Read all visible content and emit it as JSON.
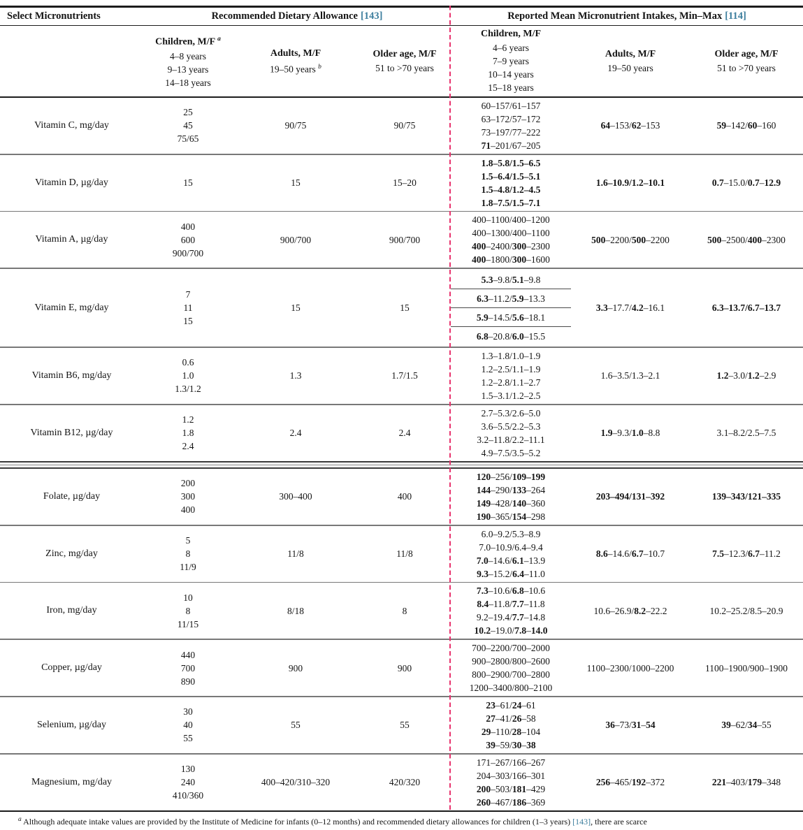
{
  "colors": {
    "reference": "#3e7f9e",
    "dashed_divider": "#e8336e"
  },
  "table": {
    "header": {
      "select_micronutrients": "Select Micronutrients",
      "rda_group": {
        "title": "Recommended Dietary Allowance",
        "ref": "[143]"
      },
      "reported_group": {
        "title": "Reported Mean Micronutrient Intakes, Min–Max",
        "ref": "[114]"
      },
      "rda_children": {
        "title": "Children, M/F",
        "sup": "a",
        "lines": [
          "4–8 years",
          "9–13 years",
          "14–18 years"
        ]
      },
      "rda_adults": {
        "title": "Adults, M/F",
        "line": "19–50 years",
        "sup": "b"
      },
      "rda_older": {
        "title": "Older age, M/F",
        "line": "51 to >70 years"
      },
      "rep_children": {
        "title": "Children, M/F",
        "lines": [
          "4–6 years",
          "7–9 years",
          "10–14 years",
          "15–18 years"
        ]
      },
      "rep_adults": {
        "title": "Adults, M/F",
        "line": "19–50 years"
      },
      "rep_older": {
        "title": "Older age, M/F",
        "line": "51 to >70 years"
      }
    },
    "rows": [
      {
        "name": "Vitamin C, mg/day",
        "divider_after": "single",
        "ruled_children": false,
        "rda_children": [
          "25",
          "45",
          "75/65"
        ],
        "rda_adults": [
          "90/75"
        ],
        "rda_older": [
          "90/75"
        ],
        "rep_children": [
          "60–157/61–157",
          "63–172/57–172",
          "73–197/77–222",
          "**71**–201/67–205"
        ],
        "rep_adults": [
          "**64**–153/**62**–153"
        ],
        "rep_older": [
          "**59**–142/**60**–160"
        ]
      },
      {
        "name": "Vitamin D, µg/day",
        "divider_after": "single",
        "ruled_children": false,
        "rda_children": [
          "15"
        ],
        "rda_adults": [
          "15"
        ],
        "rda_older": [
          "15–20"
        ],
        "rep_children": [
          "**1.8–5.8/1.5–6.5**",
          "**1.5–6.4/1.5–5.1**",
          "**1.5–4.8/1.2–4.5**",
          "**1.8–7.5/1.5–7.1**"
        ],
        "rep_adults": [
          "**1.6–10.9/1.2–10.1**"
        ],
        "rep_older": [
          "**0.7**–15.0/**0.7**–**12.9**"
        ]
      },
      {
        "name": "Vitamin A, µg/day",
        "divider_after": "single",
        "ruled_children": false,
        "rda_children": [
          "400",
          "600",
          "900/700"
        ],
        "rda_adults": [
          "900/700"
        ],
        "rda_older": [
          "900/700"
        ],
        "rep_children": [
          "400–1100/400–1200",
          "400–1300/400–1100",
          "**400**–2400/**300**–2300",
          "**400**–1800/**300**–1600"
        ],
        "rep_adults": [
          "**500**–2200/**500**–2200"
        ],
        "rep_older": [
          "**500**–2500/**400**–2300"
        ]
      },
      {
        "name": "Vitamin E, mg/day",
        "divider_after": "single",
        "ruled_children": true,
        "rda_children": [
          "7",
          "11",
          "15"
        ],
        "rda_adults": [
          "15"
        ],
        "rda_older": [
          "15"
        ],
        "rep_children": [
          "**5.3**–9.8/**5.1**–9.8",
          "**6.3**–11.2/**5.9**–13.3",
          "**5.9**–14.5/**5.6**–18.1",
          "**6.8**–20.8/**6.0**–15.5"
        ],
        "rep_adults": [
          "**3.3**–17.7/**4.2**–16.1"
        ],
        "rep_older": [
          "**6.3–13.7/6.7–13.7**"
        ]
      },
      {
        "name": "Vitamin B6, mg/day",
        "divider_after": "single",
        "ruled_children": false,
        "rda_children": [
          "0.6",
          "1.0",
          "1.3/1.2"
        ],
        "rda_adults": [
          "1.3"
        ],
        "rda_older": [
          "1.7/1.5"
        ],
        "rep_children": [
          "1.3–1.8/1.0–1.9",
          "1.2–2.5/1.1–1.9",
          "1.2–2.8/1.1–2.7",
          "1.5–3.1/1.2–2.5"
        ],
        "rep_adults": [
          "1.6–3.5/1.3–2.1"
        ],
        "rep_older": [
          "**1.2**–3.0/**1.2**–2.9"
        ]
      },
      {
        "name": "Vitamin B12, µg/day",
        "divider_after": "double",
        "ruled_children": false,
        "rda_children": [
          "1.2",
          "1.8",
          "2.4"
        ],
        "rda_adults": [
          "2.4"
        ],
        "rda_older": [
          "2.4"
        ],
        "rep_children": [
          "2.7–5.3/2.6–5.0",
          "3.6–5.5/2.2–5.3",
          "3.2–11.8/2.2–11.1",
          "4.9–7.5/3.5–5.2"
        ],
        "rep_adults": [
          "**1.9**–9.3/**1.0**–8.8"
        ],
        "rep_older": [
          "3.1–8.2/2.5–7.5"
        ]
      },
      {
        "name": "Folate, µg/day",
        "divider_after": "single",
        "ruled_children": false,
        "rda_children": [
          "200",
          "300",
          "400"
        ],
        "rda_adults": [
          "300–400"
        ],
        "rda_older": [
          "400"
        ],
        "rep_children": [
          "**120**–256/**109–199**",
          "**144**–290/**133**–264",
          "**149**–428/**140**–360",
          "**190**–365/**154**–298"
        ],
        "rep_adults": [
          "**203–494/131–392**"
        ],
        "rep_older": [
          "**139–343/121–335**"
        ]
      },
      {
        "name": "Zinc, mg/day",
        "divider_after": "single",
        "ruled_children": false,
        "rda_children": [
          "5",
          "8",
          "11/9"
        ],
        "rda_adults": [
          "11/8"
        ],
        "rda_older": [
          "11/8"
        ],
        "rep_children": [
          "6.0–9.2/5.3–8.9",
          "7.0–10.9/6.4–9.4",
          "**7.0**–14.6/**6.1**–13.9",
          "**9.3**–15.2/**6.4**–11.0"
        ],
        "rep_adults": [
          "**8.6**–14.6/**6.7**–10.7"
        ],
        "rep_older": [
          "**7.5**–12.3/**6.7**–11.2"
        ]
      },
      {
        "name": "Iron, mg/day",
        "divider_after": "single",
        "ruled_children": false,
        "rda_children": [
          "10",
          "8",
          "11/15"
        ],
        "rda_adults": [
          "8/18"
        ],
        "rda_older": [
          "8"
        ],
        "rep_children": [
          "**7.3**–10.6/**6.8**–10.6",
          "**8.4**–11.8/**7.7**–11.8",
          "9.2–19.4/**7.7**–14.8",
          "**10.2**–19.0/**7.8**–**14.0**"
        ],
        "rep_adults": [
          "10.6–26.9/**8.2**–22.2"
        ],
        "rep_older": [
          "10.2–25.2/8.5–20.9"
        ]
      },
      {
        "name": "Copper, µg/day",
        "divider_after": "single",
        "ruled_children": false,
        "rda_children": [
          "440",
          "700",
          "890"
        ],
        "rda_adults": [
          "900"
        ],
        "rda_older": [
          "900"
        ],
        "rep_children": [
          "700–2200/700–2000",
          "900–2800/800–2600",
          "800–2900/700–2800",
          "1200–3400/800–2100"
        ],
        "rep_adults": [
          "1100–2300/1000–2200"
        ],
        "rep_older": [
          "1100–1900/900–1900"
        ]
      },
      {
        "name": "Selenium, µg/day",
        "divider_after": "single",
        "ruled_children": false,
        "rda_children": [
          "30",
          "40",
          "55"
        ],
        "rda_adults": [
          "55"
        ],
        "rda_older": [
          "55"
        ],
        "rep_children": [
          "**23**–61/**24**–61",
          "**27**–41/**26**–58",
          "**29**–110/**28**–104",
          "**39**–59/**30**–**38**"
        ],
        "rep_adults": [
          "**36**–73/**31**–**54**"
        ],
        "rep_older": [
          "**39**–62/**34**–55"
        ]
      },
      {
        "name": "Magnesium, mg/day",
        "divider_after": "none",
        "ruled_children": false,
        "rda_children": [
          "130",
          "240",
          "410/360"
        ],
        "rda_adults": [
          "400–420/310–320"
        ],
        "rda_older": [
          "420/320"
        ],
        "rep_children": [
          "171–267/166–267",
          "204–303/166–301",
          "**200**–503/**181**–429",
          "**260**–467/**186**–369"
        ],
        "rep_adults": [
          "**256**–465/**192**–372"
        ],
        "rep_older": [
          "**221**–403/**179**–348"
        ]
      }
    ],
    "footnote": {
      "sup": "a",
      "text_before": "Although adequate intake values are provided by the Institute of Medicine for infants (0–12 months) and recommended dietary allowances for children (1–3 years) ",
      "ref": "[143]",
      "text_after": ", there are scarce"
    }
  }
}
